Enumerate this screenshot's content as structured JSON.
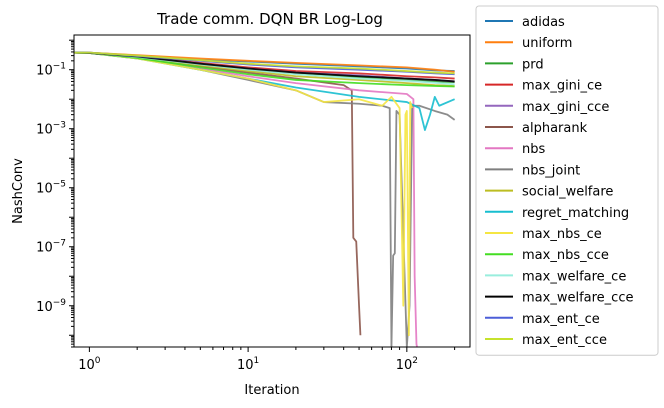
{
  "chart_data": {
    "type": "line",
    "title": "Trade comm. DQN BR Log-Log",
    "xlabel": "Iteration",
    "ylabel": "NashConv",
    "x_scale": "log",
    "y_scale": "log",
    "xlim": [
      0.8,
      250
    ],
    "ylim": [
      4e-11,
      1.5
    ],
    "x_ticks": [
      {
        "value": 1,
        "base": "10",
        "exp": "0"
      },
      {
        "value": 10,
        "base": "10",
        "exp": "1"
      },
      {
        "value": 100,
        "base": "10",
        "exp": "2"
      }
    ],
    "y_ticks": [
      {
        "value": 0.1,
        "base": "10",
        "exp": "−1"
      },
      {
        "value": 0.001,
        "base": "10",
        "exp": "−3"
      },
      {
        "value": 1e-05,
        "base": "10",
        "exp": "−5"
      },
      {
        "value": 1e-07,
        "base": "10",
        "exp": "−7"
      },
      {
        "value": 1e-09,
        "base": "10",
        "exp": "−9"
      }
    ],
    "grid": false,
    "legend_position": "outside-right",
    "series": [
      {
        "name": "adidas",
        "color": "#1f77b4",
        "x": [
          0.8,
          1,
          2,
          5,
          10,
          20,
          50,
          100,
          150,
          200
        ],
        "y": [
          0.38,
          0.38,
          0.3,
          0.22,
          0.19,
          0.16,
          0.13,
          0.11,
          0.095,
          0.09
        ]
      },
      {
        "name": "uniform",
        "color": "#ff7f0e",
        "x": [
          0.8,
          1,
          2,
          5,
          10,
          20,
          50,
          100,
          150,
          200
        ],
        "y": [
          0.38,
          0.38,
          0.31,
          0.24,
          0.2,
          0.17,
          0.14,
          0.12,
          0.1,
          0.085
        ]
      },
      {
        "name": "prd",
        "color": "#2ca02c",
        "x": [
          0.8,
          1,
          2,
          5,
          10,
          20,
          50,
          100,
          150,
          200
        ],
        "y": [
          0.38,
          0.37,
          0.26,
          0.15,
          0.1,
          0.075,
          0.055,
          0.045,
          0.04,
          0.038
        ]
      },
      {
        "name": "max_gini_ce",
        "color": "#d62728",
        "x": [
          0.8,
          1,
          2,
          5,
          10,
          20,
          50,
          100,
          150,
          200
        ],
        "y": [
          0.38,
          0.37,
          0.28,
          0.17,
          0.12,
          0.09,
          0.075,
          0.06,
          0.055,
          0.05
        ]
      },
      {
        "name": "max_gini_cce",
        "color": "#9467bd",
        "x": [
          0.8,
          1,
          2,
          5,
          10,
          20,
          50,
          100,
          150,
          200
        ],
        "y": [
          0.38,
          0.37,
          0.27,
          0.16,
          0.11,
          0.08,
          0.065,
          0.05,
          0.045,
          0.04
        ]
      },
      {
        "name": "alpharank",
        "color": "#8c564b",
        "x": [
          0.8,
          1,
          2,
          5,
          10,
          20,
          40,
          45,
          46,
          48,
          50,
          51
        ],
        "y": [
          0.38,
          0.37,
          0.25,
          0.13,
          0.08,
          0.05,
          0.03,
          0.02,
          2e-07,
          1.5e-07,
          1e-09,
          1e-10
        ]
      },
      {
        "name": "nbs",
        "color": "#e377c2",
        "x": [
          0.8,
          1,
          2,
          5,
          10,
          20,
          50,
          100,
          110,
          112,
          115,
          116
        ],
        "y": [
          0.38,
          0.37,
          0.24,
          0.11,
          0.06,
          0.035,
          0.02,
          0.015,
          0.01,
          1e-08,
          5e-11,
          4e-11
        ]
      },
      {
        "name": "nbs_joint",
        "color": "#7f7f7f",
        "x": [
          0.8,
          1,
          2,
          5,
          10,
          20,
          30,
          50,
          70,
          78,
          80,
          82,
          84,
          86,
          90,
          100,
          104,
          108,
          120,
          150,
          180,
          200
        ],
        "y": [
          0.38,
          0.37,
          0.25,
          0.1,
          0.045,
          0.02,
          0.008,
          0.007,
          0.006,
          0.005,
          4e-11,
          5e-08,
          6e-08,
          0.004,
          0.003,
          4e-11,
          1e-09,
          0.006,
          0.006,
          0.004,
          0.003,
          0.002
        ]
      },
      {
        "name": "social_welfare",
        "color": "#bcbd22",
        "x": [
          0.8,
          1,
          2,
          5,
          10,
          20,
          50,
          100,
          150,
          200
        ],
        "y": [
          0.38,
          0.37,
          0.26,
          0.14,
          0.09,
          0.06,
          0.045,
          0.035,
          0.03,
          0.028
        ]
      },
      {
        "name": "regret_matching",
        "color": "#17becf",
        "x": [
          0.8,
          1,
          2,
          5,
          10,
          20,
          50,
          100,
          120,
          130,
          140,
          150,
          160,
          200
        ],
        "y": [
          0.38,
          0.37,
          0.24,
          0.1,
          0.05,
          0.025,
          0.012,
          0.008,
          0.005,
          0.0009,
          0.003,
          0.012,
          0.006,
          0.01
        ]
      },
      {
        "name": "max_nbs_ce",
        "color": "#f5e642",
        "x": [
          0.8,
          1,
          2,
          5,
          10,
          20,
          30,
          50,
          70,
          80,
          90,
          95,
          98,
          100,
          103,
          105,
          108
        ],
        "y": [
          0.38,
          0.37,
          0.24,
          0.1,
          0.05,
          0.02,
          0.008,
          0.01,
          0.006,
          0.012,
          0.005,
          1e-09,
          0.003,
          0.004,
          1e-10,
          0.008,
          0.005
        ]
      },
      {
        "name": "max_nbs_cce",
        "color": "#44dd22",
        "x": [
          0.8,
          1,
          2,
          5,
          10,
          20,
          50,
          100,
          150,
          200
        ],
        "y": [
          0.38,
          0.37,
          0.25,
          0.12,
          0.07,
          0.045,
          0.035,
          0.03,
          0.028,
          0.027
        ]
      },
      {
        "name": "max_welfare_ce",
        "color": "#99eedd",
        "x": [
          0.8,
          1,
          2,
          5,
          10,
          20,
          50,
          100,
          150,
          200
        ],
        "y": [
          0.38,
          0.37,
          0.27,
          0.15,
          0.1,
          0.07,
          0.05,
          0.042,
          0.036,
          0.032
        ]
      },
      {
        "name": "max_welfare_cce",
        "color": "#000000",
        "x": [
          0.8,
          1,
          2,
          5,
          10,
          20,
          50,
          100,
          150,
          200
        ],
        "y": [
          0.38,
          0.37,
          0.28,
          0.16,
          0.11,
          0.08,
          0.06,
          0.05,
          0.045,
          0.04
        ]
      },
      {
        "name": "max_ent_ce",
        "color": "#4c5ed8",
        "x": [
          0.8,
          1,
          2,
          5,
          10,
          20,
          50,
          100,
          150,
          200
        ],
        "y": [
          0.38,
          0.38,
          0.29,
          0.2,
          0.15,
          0.12,
          0.1,
          0.085,
          0.075,
          0.07
        ]
      },
      {
        "name": "max_ent_cce",
        "color": "#c6e22c",
        "x": [
          0.8,
          1,
          2,
          5,
          10,
          20,
          50,
          100,
          150,
          200
        ],
        "y": [
          0.38,
          0.38,
          0.3,
          0.21,
          0.16,
          0.13,
          0.11,
          0.09,
          0.08,
          0.075
        ]
      }
    ]
  }
}
